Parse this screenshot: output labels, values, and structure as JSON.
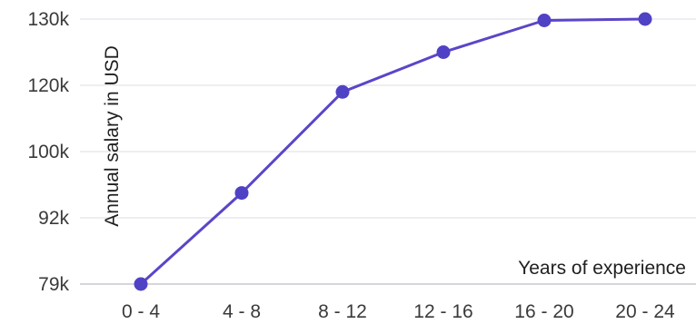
{
  "chart_data": {
    "type": "line",
    "title": "",
    "xlabel": "Years of experience",
    "ylabel": "Annual salary in USD",
    "categories": [
      "0 - 4",
      "4 - 8",
      "8 - 12",
      "12 - 16",
      "16 - 20",
      "20 - 24"
    ],
    "y_tick_labels": [
      "79k",
      "92k",
      "100k",
      "120k",
      "130k"
    ],
    "series": [
      {
        "values": [
          79000,
          95000,
          118000,
          125000,
          129800,
          130000
        ]
      }
    ],
    "grid": "horizontal",
    "colors": {
      "line": "#5b45c9",
      "marker": "#5042c4",
      "grid": "#e8e8ee",
      "baseline": "#d5d5db"
    }
  }
}
